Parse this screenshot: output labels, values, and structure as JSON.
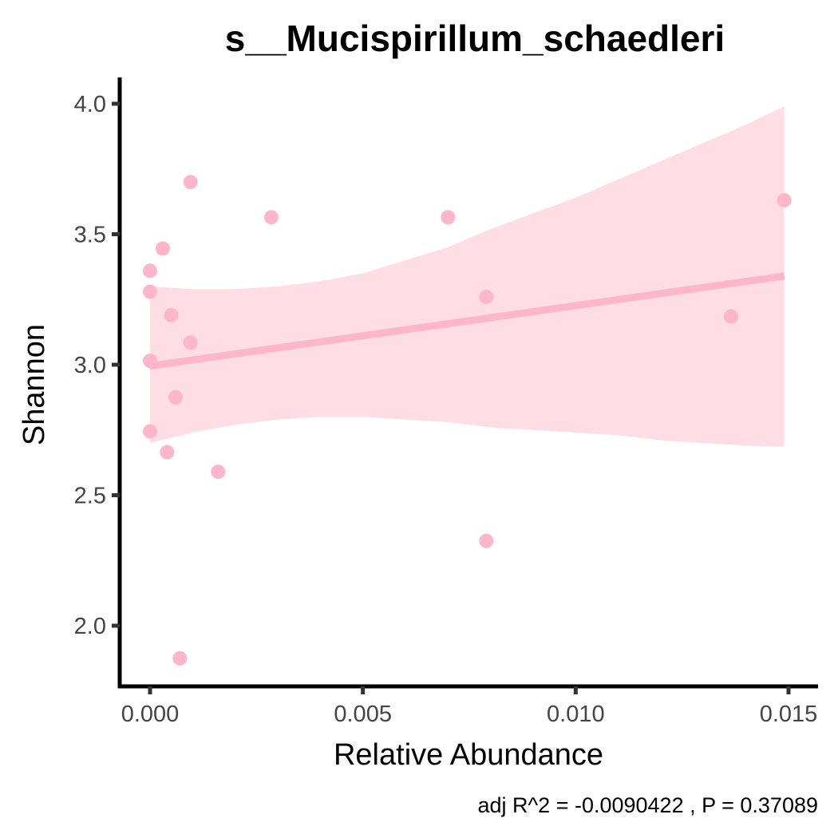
{
  "chart_data": {
    "type": "scatter",
    "title": "s__Mucispirillum_schaedleri",
    "xlabel": "Relative Abundance",
    "ylabel": "Shannon",
    "caption": "adj R^2 =  -0.0090422 , P = 0.37089",
    "xlim": [
      -0.0007,
      0.0157
    ],
    "ylim": [
      1.77,
      4.1
    ],
    "x_ticks": [
      0.0,
      0.005,
      0.01,
      0.015
    ],
    "x_tick_labels": [
      "0.000",
      "0.005",
      "0.010",
      "0.015"
    ],
    "y_ticks": [
      2.0,
      2.5,
      3.0,
      3.5,
      4.0
    ],
    "y_tick_labels": [
      "2.0",
      "2.5",
      "3.0",
      "3.5",
      "4.0"
    ],
    "grid": false,
    "legend": "none",
    "point_color": "#FFB6C8",
    "line_color": "#FFB6C8",
    "band_color": "#FFDDE4",
    "points": [
      {
        "x": 0.0,
        "y": 3.36
      },
      {
        "x": 0.0,
        "y": 3.28
      },
      {
        "x": 0.0,
        "y": 3.015
      },
      {
        "x": 0.0,
        "y": 2.745
      },
      {
        "x": 0.0003,
        "y": 3.445
      },
      {
        "x": 0.0004,
        "y": 2.665
      },
      {
        "x": 0.0005,
        "y": 3.19
      },
      {
        "x": 0.0006,
        "y": 2.875
      },
      {
        "x": 0.0007,
        "y": 1.875
      },
      {
        "x": 0.00095,
        "y": 3.7
      },
      {
        "x": 0.00095,
        "y": 3.085
      },
      {
        "x": 0.0016,
        "y": 2.59
      },
      {
        "x": 0.00285,
        "y": 3.565
      },
      {
        "x": 0.007,
        "y": 3.565
      },
      {
        "x": 0.0079,
        "y": 3.26
      },
      {
        "x": 0.0079,
        "y": 2.325
      },
      {
        "x": 0.01365,
        "y": 3.185
      },
      {
        "x": 0.0149,
        "y": 3.63
      }
    ],
    "fit_line": {
      "x": [
        0.0,
        0.0149
      ],
      "y": [
        2.995,
        3.34
      ]
    },
    "confidence_band": {
      "x": [
        0.0,
        0.001,
        0.002,
        0.003,
        0.004,
        0.005,
        0.006,
        0.007,
        0.008,
        0.009,
        0.01,
        0.011,
        0.012,
        0.013,
        0.014,
        0.0149
      ],
      "upper": [
        3.3,
        3.29,
        3.29,
        3.3,
        3.32,
        3.35,
        3.4,
        3.45,
        3.52,
        3.58,
        3.64,
        3.71,
        3.78,
        3.85,
        3.92,
        3.99
      ],
      "lower": [
        2.7,
        2.74,
        2.77,
        2.79,
        2.8,
        2.8,
        2.79,
        2.78,
        2.76,
        2.75,
        2.74,
        2.73,
        2.71,
        2.7,
        2.69,
        2.685
      ]
    }
  }
}
